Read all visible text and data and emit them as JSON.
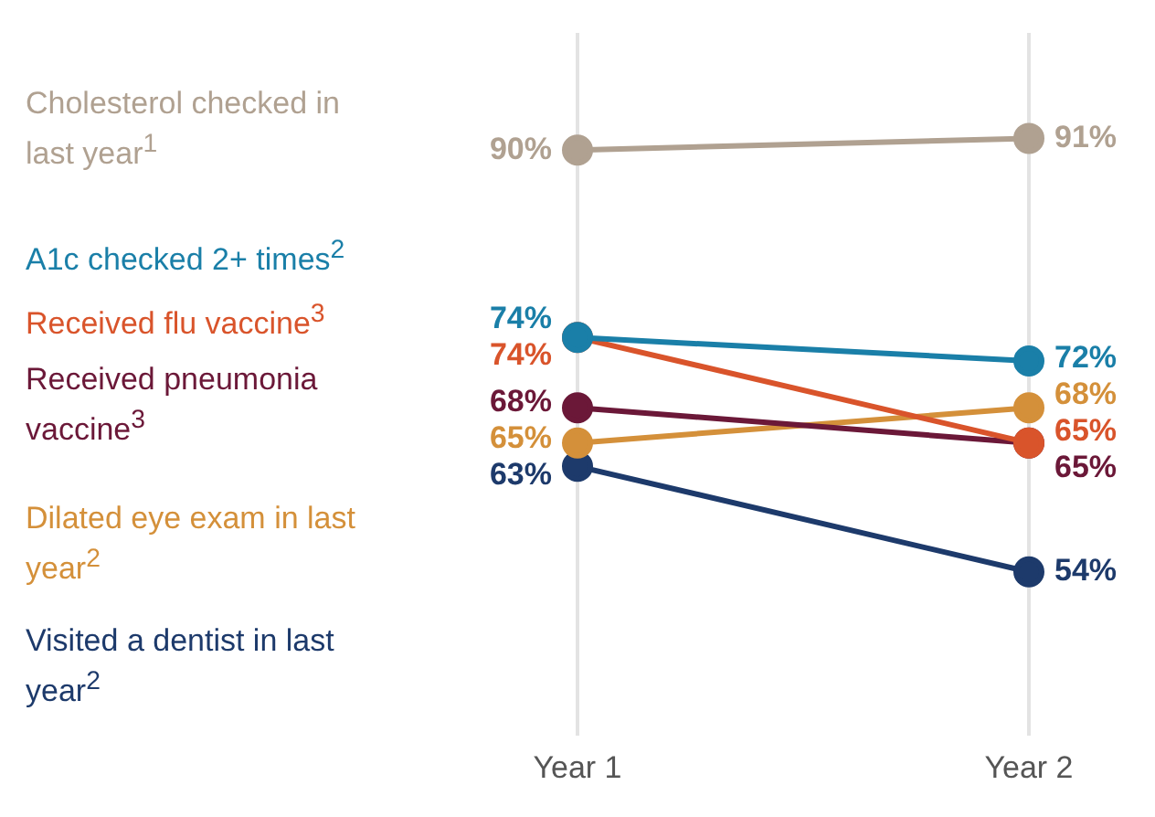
{
  "chart_data": {
    "type": "line",
    "categories": [
      "Year 1",
      "Year 2"
    ],
    "series": [
      {
        "name": "Cholesterol checked in last year$^{1}$",
        "color": "#b0a191",
        "values": [
          90,
          91
        ],
        "value_labels": [
          "90%",
          "91%"
        ]
      },
      {
        "name": "A1c checked 2+ times$^{2}$",
        "color": "#1a7fa8",
        "values": [
          74,
          72
        ],
        "value_labels": [
          "74%",
          "72%"
        ]
      },
      {
        "name": "Received flu vaccine$^{3}$",
        "color": "#d9542b",
        "values": [
          74,
          65
        ],
        "value_labels": [
          "74%",
          "65%"
        ]
      },
      {
        "name": "Received pneumonia vaccine$^{3}$",
        "color": "#6b1838",
        "values": [
          68,
          65
        ],
        "value_labels": [
          "68%",
          "65%"
        ]
      },
      {
        "name": "Dilated eye exam in last year$^{2}$",
        "color": "#d4903a",
        "values": [
          65,
          68
        ],
        "value_labels": [
          "65%",
          "68%"
        ]
      },
      {
        "name": "Visited a dentist in last year$^{2}$",
        "color": "#1d3a6b",
        "values": [
          63,
          54
        ],
        "value_labels": [
          "63%",
          "54%"
        ]
      }
    ],
    "grid": "x",
    "legend": "left",
    "marker": "circle",
    "tick_labels": "x"
  }
}
